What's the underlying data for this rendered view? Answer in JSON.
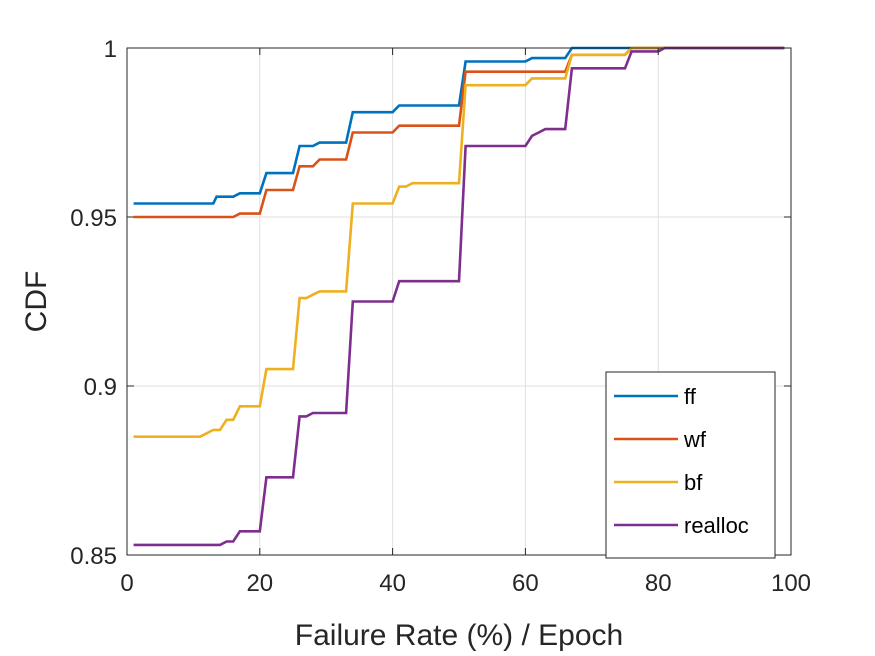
{
  "chart_data": {
    "type": "line",
    "title": "",
    "xlabel": "Failure Rate (%) / Epoch",
    "ylabel": "CDF",
    "xlim": [
      0,
      100
    ],
    "ylim": [
      0.85,
      1
    ],
    "xticks": [
      0,
      20,
      40,
      60,
      80,
      100
    ],
    "xtick_labels": [
      "0",
      "20",
      "40",
      "60",
      "80",
      "100"
    ],
    "yticks": [
      0.85,
      0.9,
      0.95,
      1
    ],
    "ytick_labels": [
      "0.85",
      "0.9",
      "0.95",
      "1"
    ],
    "grid": true,
    "legend_position": "bottom-right",
    "series": [
      {
        "name": "ff",
        "color": "#0072BD",
        "points": [
          [
            1,
            0.954
          ],
          [
            13,
            0.954
          ],
          [
            13.5,
            0.956
          ],
          [
            16,
            0.956
          ],
          [
            17,
            0.957
          ],
          [
            20,
            0.957
          ],
          [
            21,
            0.963
          ],
          [
            25,
            0.963
          ],
          [
            26,
            0.971
          ],
          [
            28,
            0.971
          ],
          [
            29,
            0.972
          ],
          [
            33,
            0.972
          ],
          [
            34,
            0.981
          ],
          [
            40,
            0.981
          ],
          [
            41,
            0.983
          ],
          [
            50,
            0.983
          ],
          [
            51,
            0.996
          ],
          [
            60,
            0.996
          ],
          [
            61,
            0.997
          ],
          [
            66,
            0.997
          ],
          [
            67,
            1
          ],
          [
            99,
            1
          ]
        ]
      },
      {
        "name": "wf",
        "color": "#D95319",
        "points": [
          [
            1,
            0.95
          ],
          [
            16,
            0.95
          ],
          [
            17,
            0.951
          ],
          [
            20,
            0.951
          ],
          [
            21,
            0.958
          ],
          [
            25,
            0.958
          ],
          [
            26,
            0.965
          ],
          [
            28,
            0.965
          ],
          [
            29,
            0.967
          ],
          [
            33,
            0.967
          ],
          [
            34,
            0.975
          ],
          [
            40,
            0.975
          ],
          [
            41,
            0.977
          ],
          [
            50,
            0.977
          ],
          [
            51,
            0.993
          ],
          [
            66,
            0.993
          ],
          [
            67,
            0.998
          ],
          [
            75,
            0.998
          ],
          [
            76,
            1
          ],
          [
            99,
            1
          ]
        ]
      },
      {
        "name": "bf",
        "color": "#EDB120",
        "points": [
          [
            1,
            0.885
          ],
          [
            11,
            0.885
          ],
          [
            12,
            0.886
          ],
          [
            13,
            0.887
          ],
          [
            14,
            0.887
          ],
          [
            15,
            0.89
          ],
          [
            16,
            0.89
          ],
          [
            17,
            0.894
          ],
          [
            20,
            0.894
          ],
          [
            21,
            0.905
          ],
          [
            25,
            0.905
          ],
          [
            26,
            0.926
          ],
          [
            27,
            0.926
          ],
          [
            28,
            0.927
          ],
          [
            29,
            0.928
          ],
          [
            33,
            0.928
          ],
          [
            34,
            0.954
          ],
          [
            40,
            0.954
          ],
          [
            41,
            0.959
          ],
          [
            42,
            0.959
          ],
          [
            43,
            0.96
          ],
          [
            50,
            0.96
          ],
          [
            51,
            0.989
          ],
          [
            60,
            0.989
          ],
          [
            61,
            0.991
          ],
          [
            66,
            0.991
          ],
          [
            67,
            0.998
          ],
          [
            75,
            0.998
          ],
          [
            76,
            1
          ],
          [
            99,
            1
          ]
        ]
      },
      {
        "name": "realloc",
        "color": "#7E2F8E",
        "points": [
          [
            1,
            0.853
          ],
          [
            14,
            0.853
          ],
          [
            15,
            0.854
          ],
          [
            16,
            0.854
          ],
          [
            17,
            0.857
          ],
          [
            20,
            0.857
          ],
          [
            21,
            0.873
          ],
          [
            25,
            0.873
          ],
          [
            26,
            0.891
          ],
          [
            27,
            0.891
          ],
          [
            28,
            0.892
          ],
          [
            33,
            0.892
          ],
          [
            34,
            0.925
          ],
          [
            40,
            0.925
          ],
          [
            41,
            0.931
          ],
          [
            50,
            0.931
          ],
          [
            51,
            0.971
          ],
          [
            60,
            0.971
          ],
          [
            61,
            0.974
          ],
          [
            62,
            0.975
          ],
          [
            63,
            0.976
          ],
          [
            66,
            0.976
          ],
          [
            67,
            0.994
          ],
          [
            75,
            0.994
          ],
          [
            76,
            0.999
          ],
          [
            80,
            0.999
          ],
          [
            81,
            1
          ],
          [
            99,
            1
          ]
        ]
      }
    ]
  }
}
